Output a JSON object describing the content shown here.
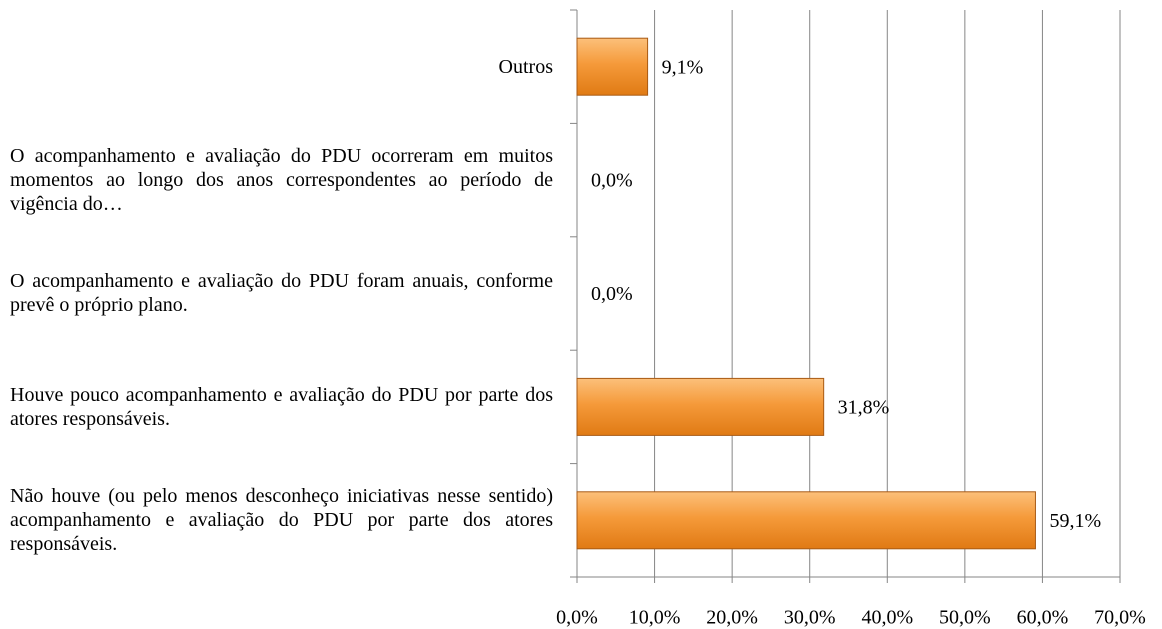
{
  "chart_data": {
    "type": "bar",
    "orientation": "horizontal",
    "categories": [
      "Outros",
      "O acompanhamento e avaliação do PDU ocorreram em muitos momentos ao longo dos anos correspondentes ao período de vigência do…",
      "O acompanhamento e avaliação do PDU foram anuais, conforme prevê o próprio plano.",
      "Houve pouco acompanhamento e avaliação do PDU por parte dos atores responsáveis.",
      "Não houve (ou pelo menos desconheço iniciativas nesse sentido) acompanhamento e avaliação do PDU por parte dos atores responsáveis."
    ],
    "values": [
      9.1,
      0,
      0,
      31.8,
      59.1
    ],
    "value_labels": [
      "9,1%",
      "0,0%",
      "0,0%",
      "31,8%",
      "59,1%"
    ],
    "color": "#f28a1e",
    "xlim": [
      0,
      70
    ],
    "xticks": [
      {
        "value": 0,
        "label": "0,0%"
      },
      {
        "value": 10,
        "label": "10,0%"
      },
      {
        "value": 20,
        "label": "20,0%"
      },
      {
        "value": 30,
        "label": "30,0%"
      },
      {
        "value": 40,
        "label": "40,0%"
      },
      {
        "value": 50,
        "label": "50,0%"
      },
      {
        "value": 60,
        "label": "60,0%"
      },
      {
        "value": 70,
        "label": "70,0%"
      }
    ],
    "grid": true
  }
}
